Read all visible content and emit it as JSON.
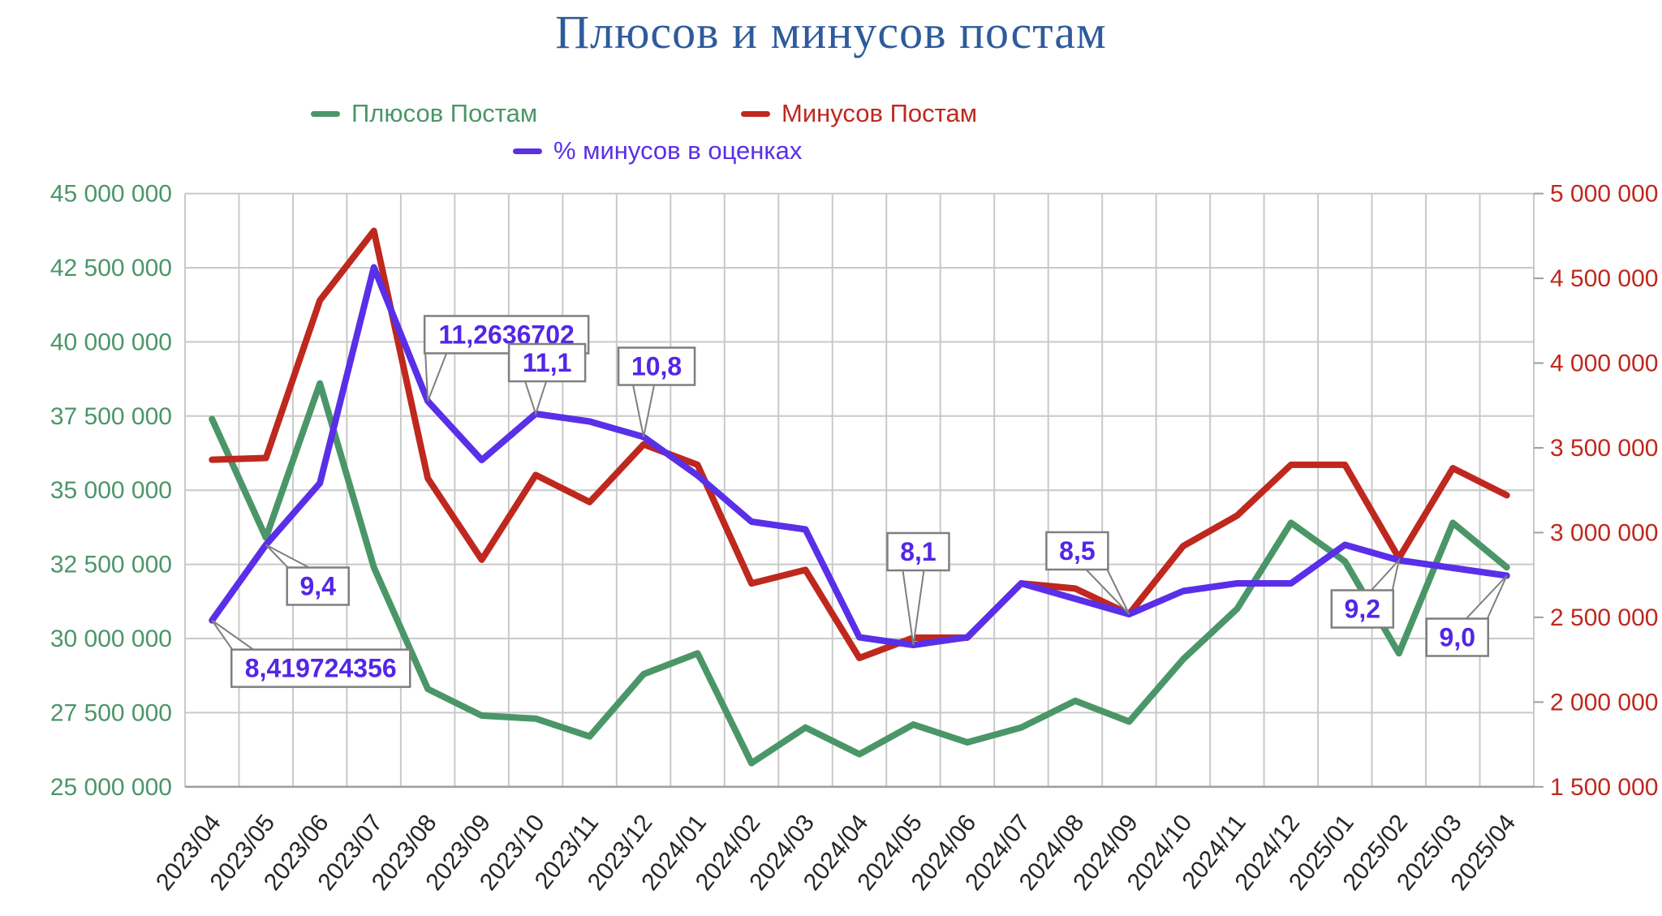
{
  "title": "Плюсов и минусов постам",
  "legend": {
    "pluses_label": "Плюсов Постам",
    "minuses_label": "Минусов Постам",
    "percent_label": "% минусов в оценках"
  },
  "colors": {
    "title": "#2e5b9b",
    "pluses": "#4b9668",
    "minuses": "#bf281e",
    "percent": "#5a2fe8",
    "callout_text": "#5326e6",
    "callout_border": "#7f7f7f",
    "gridline": "#c9c9c9",
    "axis_line": "#9e9e9e",
    "x_label": "#262626"
  },
  "chart_data": {
    "type": "line",
    "title": "Плюсов и минусов постам",
    "grid": true,
    "legend_position": "top",
    "categories": [
      "2023/04",
      "2023/05",
      "2023/06",
      "2023/07",
      "2023/08",
      "2023/09",
      "2023/10",
      "2023/11",
      "2023/12",
      "2024/01",
      "2024/02",
      "2024/03",
      "2024/04",
      "2024/05",
      "2024/06",
      "2024/07",
      "2024/08",
      "2024/09",
      "2024/10",
      "2024/11",
      "2024/12",
      "2025/01",
      "2025/02",
      "2025/03",
      "2025/04"
    ],
    "series": [
      {
        "name": "Плюсов Постам",
        "axis": "left",
        "color": "#4b9668",
        "values": [
          37400000,
          33400000,
          38600000,
          32400000,
          28300000,
          27400000,
          27300000,
          26700000,
          28800000,
          29500000,
          25800000,
          27000000,
          26100000,
          27100000,
          26500000,
          27000000,
          27900000,
          27200000,
          29300000,
          31000000,
          33900000,
          32600000,
          29500000,
          33900000,
          32400000
        ]
      },
      {
        "name": "Минусов Постам",
        "axis": "right",
        "color": "#bf281e",
        "values": [
          3430000,
          3440000,
          4370000,
          4780000,
          3320000,
          2840000,
          3340000,
          3180000,
          3520000,
          3400000,
          2700000,
          2780000,
          2260000,
          2380000,
          2380000,
          2700000,
          2670000,
          2520000,
          2920000,
          3100000,
          3400000,
          3400000,
          2850000,
          3380000,
          3220000
        ]
      },
      {
        "name": "% минусов в оценках",
        "axis": "hidden",
        "color": "#5a2fe8",
        "values": [
          8.419724356,
          9.4,
          10.2,
          13.0,
          11.2636702,
          10.5,
          11.1,
          11.0,
          10.8,
          10.3,
          9.7,
          9.6,
          8.2,
          8.1,
          8.2,
          8.9,
          8.7,
          8.5,
          8.8,
          8.9,
          8.9,
          9.4,
          9.2,
          9.1,
          9.0
        ]
      }
    ],
    "annotations": [
      {
        "series": "% минусов в оценках",
        "index": 0,
        "text": "8,419724356"
      },
      {
        "series": "% минусов в оценках",
        "index": 1,
        "text": "9,4"
      },
      {
        "series": "% минусов в оценках",
        "index": 4,
        "text": "11,2636702"
      },
      {
        "series": "% минусов в оценках",
        "index": 6,
        "text": "11,1"
      },
      {
        "series": "% минусов в оценках",
        "index": 8,
        "text": "10,8"
      },
      {
        "series": "% минусов в оценках",
        "index": 13,
        "text": "8,1"
      },
      {
        "series": "% минусов в оценках",
        "index": 17,
        "text": "8,5"
      },
      {
        "series": "% минусов в оценках",
        "index": 22,
        "text": "9,2"
      },
      {
        "series": "% минусов в оценках",
        "index": 24,
        "text": "9,0"
      }
    ],
    "left_axis": {
      "min": 25000000,
      "max": 45000000,
      "step": 2500000,
      "ticks": [
        "45 000 000",
        "42 500 000",
        "40 000 000",
        "37 500 000",
        "35 000 000",
        "32 500 000",
        "30 000 000",
        "27 500 000",
        "25 000 000"
      ]
    },
    "right_axis": {
      "min": 1500000,
      "max": 5000000,
      "step": 500000,
      "ticks": [
        "5 000 000",
        "4 500 000",
        "4 000 000",
        "3 500 000",
        "3 000 000",
        "2 500 000",
        "2 000 000",
        "1 500 000"
      ]
    }
  }
}
